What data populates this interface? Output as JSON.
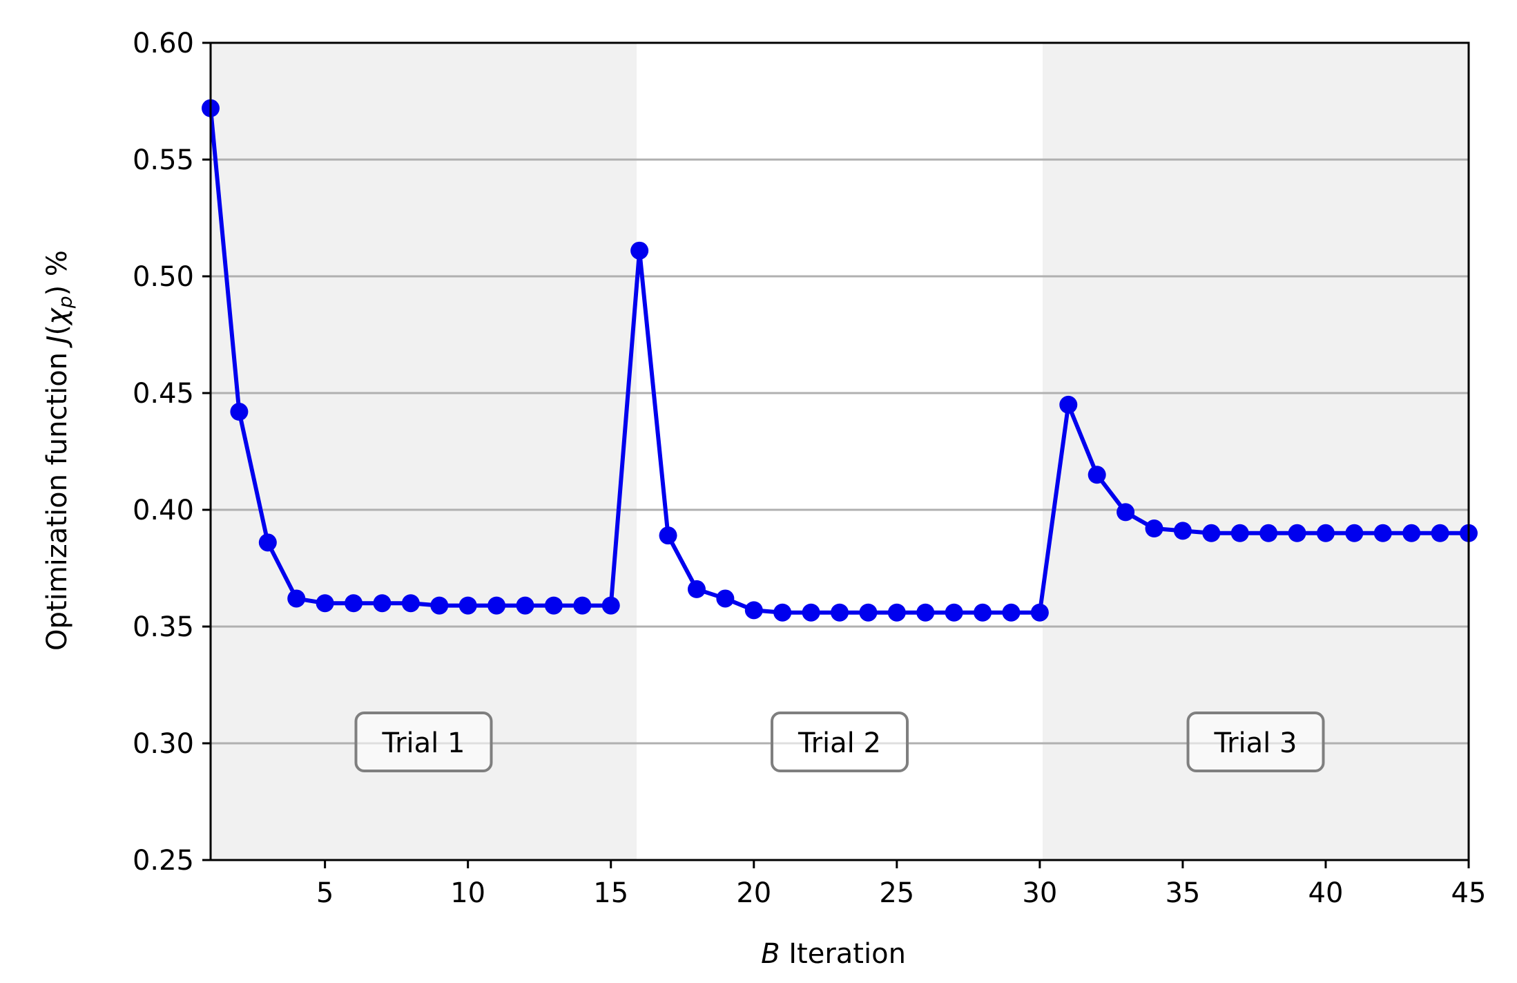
{
  "chart_data": {
    "type": "line",
    "title": "",
    "xlabel_var": "B",
    "xlabel_text": "Iteration",
    "ylabel_text": "Optimization function",
    "ylabel_sym_J": "J",
    "ylabel_sym_chi": "χ",
    "ylabel_sym_sub": "p",
    "ylabel_unit": "%",
    "xlim": [
      1,
      45
    ],
    "ylim": [
      0.25,
      0.6
    ],
    "xticks": [
      "5",
      "10",
      "15",
      "20",
      "25",
      "30",
      "35",
      "40",
      "45"
    ],
    "yticks": [
      "0.25",
      "0.30",
      "0.35",
      "0.40",
      "0.45",
      "0.50",
      "0.55",
      "0.60"
    ],
    "grid": "horizontal",
    "line_color": "#0000ee",
    "shade_color": "#f1f1f1",
    "trials": [
      {
        "label": "Trial 1",
        "x_start": 1,
        "x_end": 15.9,
        "shaded": true
      },
      {
        "label": "Trial 2",
        "x_start": 15.9,
        "x_end": 30.1,
        "shaded": false
      },
      {
        "label": "Trial 3",
        "x_start": 30.1,
        "x_end": 45,
        "shaded": true
      }
    ],
    "series": [
      {
        "x": [
          1,
          2,
          3,
          4,
          5,
          6,
          7,
          8,
          9,
          10,
          11,
          12,
          13,
          14,
          15,
          16,
          17,
          18,
          19,
          20,
          21,
          22,
          23,
          24,
          25,
          26,
          27,
          28,
          29,
          30,
          31,
          32,
          33,
          34,
          35,
          36,
          37,
          38,
          39,
          40,
          41,
          42,
          43,
          44,
          45
        ],
        "values": [
          0.572,
          0.442,
          0.386,
          0.362,
          0.36,
          0.36,
          0.36,
          0.36,
          0.359,
          0.359,
          0.359,
          0.359,
          0.359,
          0.359,
          0.359,
          0.511,
          0.389,
          0.366,
          0.362,
          0.357,
          0.356,
          0.356,
          0.356,
          0.356,
          0.356,
          0.356,
          0.356,
          0.356,
          0.356,
          0.356,
          0.445,
          0.415,
          0.399,
          0.392,
          0.391,
          0.39,
          0.39,
          0.39,
          0.39,
          0.39,
          0.39,
          0.39,
          0.39,
          0.39,
          0.39
        ]
      }
    ]
  }
}
